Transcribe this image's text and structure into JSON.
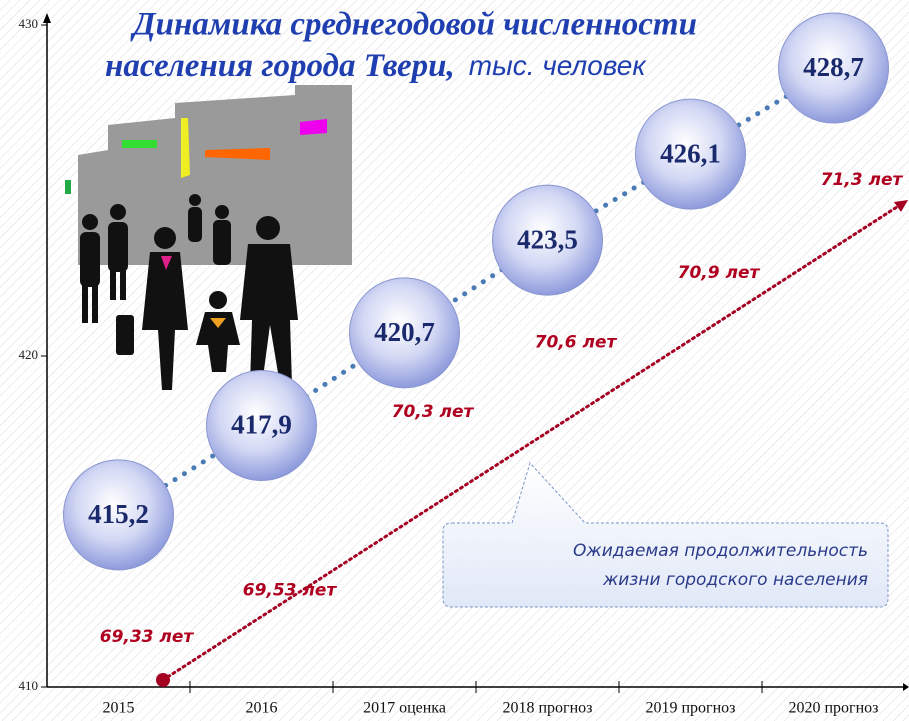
{
  "chart_data": {
    "type": "line",
    "title": "Динамика среднегодовой численности",
    "subtitle": "населения города Твери,",
    "unit": "тыс. человек",
    "annotation": [
      "Ожидаемая продолжительность",
      "жизни городского населения"
    ],
    "categories": [
      "2015",
      "2016",
      "2017 оценка",
      "2018 прогноз",
      "2019 прогноз",
      "2020 прогноз"
    ],
    "series": [
      {
        "color": "#4a7bb5",
        "values": [
          415.2,
          417.9,
          420.7,
          423.5,
          426.1,
          428.7
        ],
        "value_labels": [
          "415,2",
          "417,9",
          "420,7",
          "423,5",
          "426,1",
          "428,7"
        ]
      },
      {
        "color": "#a50021",
        "values": [
          69.33,
          69.53,
          70.3,
          70.6,
          70.9,
          71.3
        ],
        "value_labels": [
          "69,33 лет",
          "69,53 лет",
          "70,3 лет",
          "70,6 лет",
          "70,9 лет",
          "71,3 лет"
        ]
      }
    ],
    "ylim": [
      410,
      430
    ],
    "yticks": [
      410,
      420,
      430
    ]
  }
}
